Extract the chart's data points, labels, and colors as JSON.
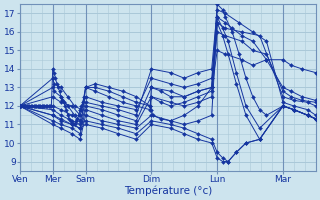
{
  "xlabel": "Température (°c)",
  "bg_color": "#cde4ee",
  "grid_color": "#aac8d8",
  "line_color": "#1535a0",
  "marker_color": "#1535a0",
  "ylim": [
    8.5,
    17.5
  ],
  "yticks": [
    9,
    10,
    11,
    12,
    13,
    14,
    15,
    16,
    17
  ],
  "day_labels": [
    "Ven",
    "Mer",
    "Sam",
    "Dim",
    "Lun",
    "Mar"
  ],
  "day_x": [
    0,
    24,
    48,
    96,
    144,
    192
  ],
  "xlim": [
    0,
    216
  ],
  "series": [
    {
      "x": [
        0,
        1,
        2,
        3,
        4,
        5,
        6,
        7,
        8,
        9,
        10,
        11,
        12,
        13,
        14,
        15,
        16,
        17,
        18,
        19,
        20,
        21,
        22,
        23,
        24,
        25,
        26,
        27,
        28,
        29,
        30,
        31,
        32,
        33,
        34,
        35,
        36,
        37,
        38,
        39,
        40,
        41,
        42,
        43,
        44,
        45,
        46,
        47,
        48,
        55,
        65,
        75,
        85,
        95,
        96,
        97,
        103,
        110,
        120,
        130,
        140,
        144,
        150,
        155,
        162,
        170,
        180,
        192,
        198,
        206,
        216
      ],
      "y": [
        12.0,
        12.0,
        12.0,
        12.0,
        12.0,
        12.0,
        12.0,
        12.0,
        12.0,
        12.0,
        12.0,
        12.0,
        12.0,
        12.0,
        12.0,
        12.0,
        12.0,
        12.0,
        12.0,
        12.0,
        12.0,
        12.0,
        12.0,
        12.0,
        14.0,
        13.8,
        13.5,
        13.2,
        13.0,
        12.8,
        12.5,
        12.3,
        12.2,
        12.0,
        11.8,
        11.5,
        11.3,
        11.2,
        11.0,
        11.0,
        11.0,
        11.2,
        11.3,
        11.5,
        11.8,
        12.0,
        12.2,
        12.5,
        13.0,
        13.2,
        13.0,
        12.8,
        12.5,
        12.0,
        11.8,
        11.5,
        11.3,
        11.2,
        11.5,
        12.0,
        13.0,
        16.8,
        16.5,
        16.2,
        15.8,
        15.5,
        14.5,
        13.0,
        12.8,
        12.5,
        12.3
      ]
    },
    {
      "x": [
        0,
        24,
        25,
        30,
        35,
        40,
        45,
        48,
        55,
        65,
        75,
        85,
        95,
        96,
        103,
        110,
        120,
        130,
        140,
        144,
        150,
        162,
        170,
        180,
        192,
        198,
        206,
        216
      ],
      "y": [
        12.0,
        13.5,
        13.2,
        13.0,
        12.5,
        12.0,
        11.8,
        13.0,
        13.0,
        12.8,
        12.5,
        12.2,
        12.0,
        12.5,
        12.2,
        12.0,
        12.2,
        12.5,
        12.8,
        15.0,
        14.8,
        14.5,
        14.2,
        14.5,
        14.5,
        14.2,
        14.0,
        13.8
      ]
    },
    {
      "x": [
        0,
        24,
        25,
        30,
        35,
        40,
        45,
        48,
        55,
        65,
        75,
        85,
        95,
        96,
        103,
        110,
        120,
        130,
        140,
        144,
        150,
        162,
        170,
        180,
        192,
        198,
        206,
        216
      ],
      "y": [
        12.0,
        13.0,
        12.8,
        12.5,
        12.0,
        11.5,
        11.2,
        13.0,
        12.8,
        12.5,
        12.2,
        12.0,
        11.8,
        13.0,
        12.8,
        12.5,
        12.5,
        12.8,
        13.0,
        16.0,
        15.8,
        15.5,
        15.0,
        14.8,
        12.8,
        12.5,
        12.3,
        12.2
      ]
    },
    {
      "x": [
        0,
        24,
        30,
        38,
        44,
        48,
        60,
        72,
        85,
        96,
        110,
        120,
        130,
        140,
        144,
        150,
        162,
        175,
        192,
        200,
        210,
        216
      ],
      "y": [
        12.0,
        12.5,
        12.2,
        12.0,
        11.5,
        12.5,
        12.2,
        12.0,
        11.8,
        13.5,
        13.2,
        13.0,
        13.2,
        13.5,
        16.5,
        16.2,
        16.0,
        15.8,
        12.5,
        12.3,
        12.2,
        12.0
      ]
    },
    {
      "x": [
        0,
        24,
        30,
        38,
        44,
        48,
        60,
        72,
        85,
        96,
        110,
        120,
        130,
        140,
        144,
        150,
        160,
        170,
        180,
        192,
        200,
        210,
        216
      ],
      "y": [
        12.0,
        12.0,
        11.8,
        11.5,
        11.2,
        12.2,
        12.0,
        11.8,
        11.5,
        14.0,
        13.8,
        13.5,
        13.8,
        14.0,
        17.2,
        17.0,
        16.5,
        16.0,
        15.5,
        12.2,
        12.0,
        11.8,
        11.5
      ]
    },
    {
      "x": [
        0,
        24,
        30,
        38,
        44,
        48,
        60,
        72,
        85,
        96,
        110,
        120,
        130,
        140,
        144,
        148,
        150,
        155,
        160,
        165,
        170,
        175,
        180,
        192,
        200,
        210,
        216
      ],
      "y": [
        12.0,
        11.5,
        11.3,
        11.0,
        10.8,
        12.0,
        11.8,
        11.5,
        11.2,
        13.0,
        12.8,
        12.5,
        12.8,
        13.0,
        17.5,
        17.2,
        16.8,
        16.0,
        14.8,
        13.5,
        12.5,
        11.8,
        11.5,
        12.0,
        11.8,
        11.5,
        11.3
      ]
    },
    {
      "x": [
        0,
        24,
        30,
        38,
        44,
        48,
        60,
        72,
        85,
        96,
        110,
        120,
        130,
        140,
        144,
        148,
        152,
        158,
        165,
        175,
        192,
        200,
        210,
        216
      ],
      "y": [
        12.0,
        11.2,
        11.0,
        10.8,
        10.5,
        11.8,
        11.5,
        11.2,
        11.0,
        12.5,
        12.2,
        12.0,
        12.2,
        12.5,
        16.8,
        16.2,
        15.5,
        13.8,
        12.0,
        10.8,
        12.0,
        11.8,
        11.5,
        11.3
      ]
    },
    {
      "x": [
        0,
        24,
        30,
        38,
        44,
        48,
        60,
        72,
        85,
        96,
        110,
        120,
        130,
        140,
        144,
        148,
        152,
        158,
        165,
        175,
        192,
        200,
        210,
        216
      ],
      "y": [
        12.0,
        11.0,
        10.8,
        10.5,
        10.2,
        11.5,
        11.2,
        11.0,
        10.8,
        11.5,
        11.2,
        11.0,
        11.2,
        11.5,
        16.5,
        15.8,
        14.8,
        13.2,
        11.5,
        10.2,
        12.0,
        11.8,
        11.5,
        11.3
      ]
    },
    {
      "x": [
        0,
        24,
        30,
        38,
        44,
        48,
        60,
        72,
        85,
        96,
        110,
        120,
        130,
        140,
        144,
        148,
        152,
        158,
        165,
        175,
        192,
        200,
        210,
        216
      ],
      "y": [
        12.0,
        11.8,
        11.5,
        11.2,
        11.0,
        11.2,
        11.0,
        10.8,
        10.5,
        11.2,
        11.0,
        10.8,
        10.5,
        10.2,
        9.5,
        9.2,
        9.0,
        9.5,
        10.0,
        10.2,
        12.0,
        11.8,
        11.5,
        11.3
      ]
    },
    {
      "x": [
        0,
        24,
        30,
        38,
        44,
        48,
        60,
        72,
        85,
        96,
        110,
        120,
        130,
        140,
        144,
        148,
        152,
        158,
        165,
        175,
        192,
        200,
        210,
        216
      ],
      "y": [
        12.0,
        11.5,
        11.2,
        11.0,
        10.8,
        11.0,
        10.8,
        10.5,
        10.2,
        11.0,
        10.8,
        10.5,
        10.2,
        10.0,
        9.2,
        9.0,
        9.0,
        9.5,
        10.0,
        10.2,
        12.0,
        11.8,
        11.5,
        11.3
      ]
    }
  ],
  "fine_grid_step": 4,
  "fine_vgrid_step": 8
}
